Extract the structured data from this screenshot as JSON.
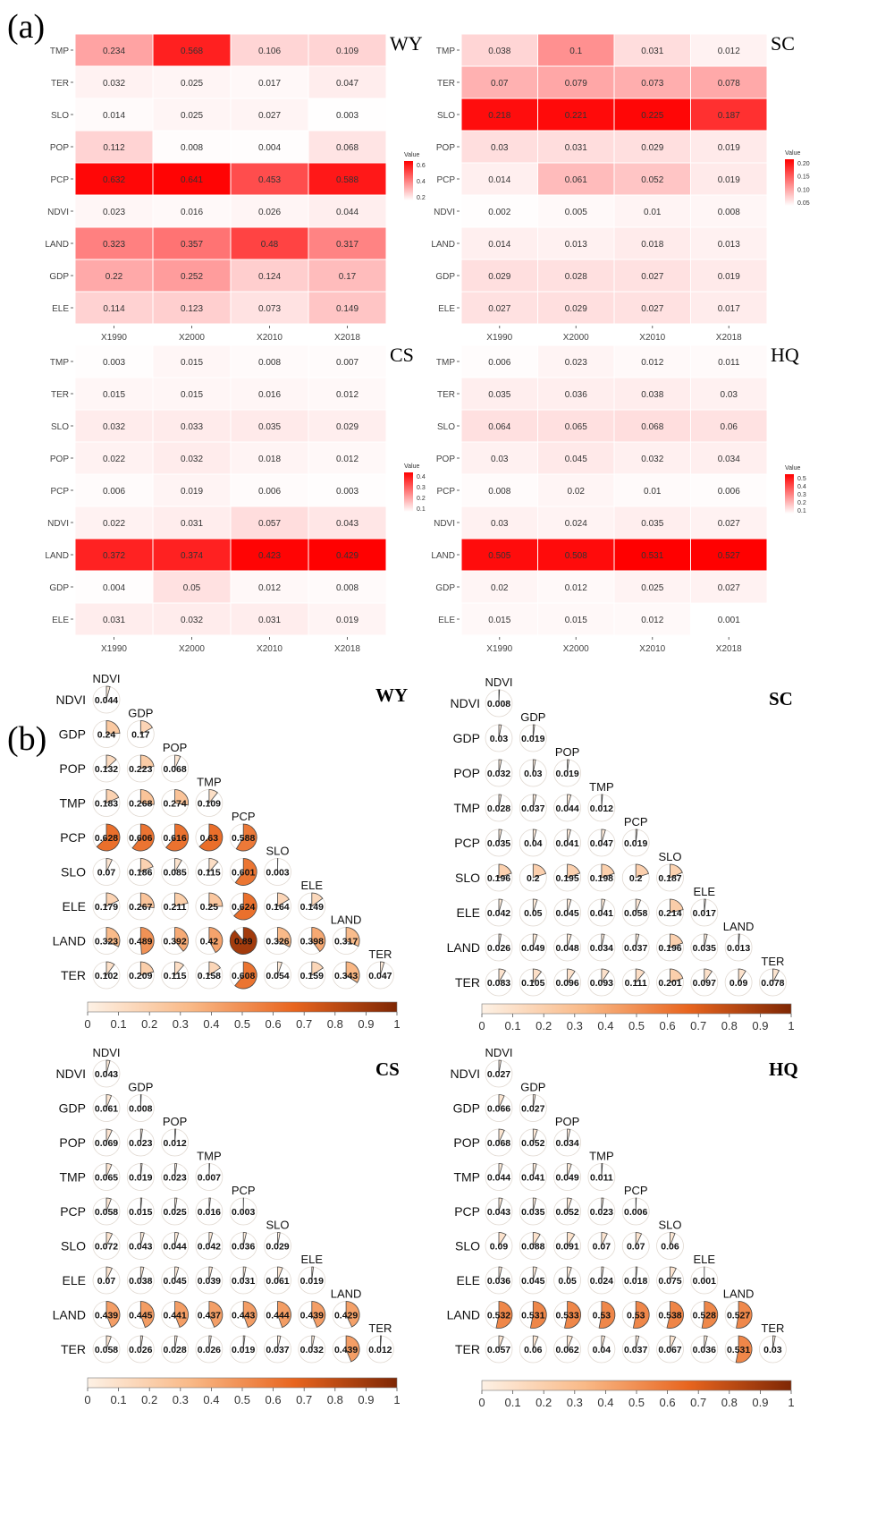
{
  "panels": {
    "a": "(a)",
    "b": "(b)"
  },
  "heatmap_legend": {
    "title": "Value",
    "min_color": "#ffffff",
    "max_color": "#ff0000"
  },
  "pie_legend": {
    "ticks": [
      "0",
      "0.1",
      "0.2",
      "0.3",
      "0.4",
      "0.5",
      "0.6",
      "0.7",
      "0.8",
      "0.9",
      "1"
    ],
    "color_stops": [
      "#fdf1e5",
      "#f9b987",
      "#e8651f",
      "#7f2704"
    ]
  },
  "chart_data": [
    {
      "type": "heatmap",
      "title": "WY",
      "rows": [
        "TMP",
        "TER",
        "SLO",
        "POP",
        "PCP",
        "NDVI",
        "LAND",
        "GDP",
        "ELE"
      ],
      "cols": [
        "X1990",
        "X2000",
        "X2010",
        "X2018"
      ],
      "values": [
        [
          0.234,
          0.568,
          0.106,
          0.109
        ],
        [
          0.032,
          0.025,
          0.017,
          0.047
        ],
        [
          0.014,
          0.025,
          0.027,
          0.003
        ],
        [
          0.112,
          0.008,
          0.004,
          0.068
        ],
        [
          0.632,
          0.641,
          0.453,
          0.588
        ],
        [
          0.023,
          0.016,
          0.026,
          0.044
        ],
        [
          0.323,
          0.357,
          0.48,
          0.317
        ],
        [
          0.22,
          0.252,
          0.124,
          0.17
        ],
        [
          0.114,
          0.123,
          0.073,
          0.149
        ]
      ],
      "legend_ticks": [
        "0.6",
        "0.4",
        "0.2"
      ],
      "vmax": 0.65
    },
    {
      "type": "heatmap",
      "title": "SC",
      "rows": [
        "TMP",
        "TER",
        "SLO",
        "POP",
        "PCP",
        "NDVI",
        "LAND",
        "GDP",
        "ELE"
      ],
      "cols": [
        "X1990",
        "X2000",
        "X2010",
        "X2018"
      ],
      "values": [
        [
          0.038,
          0.1,
          0.031,
          0.012
        ],
        [
          0.07,
          0.079,
          0.073,
          0.078
        ],
        [
          0.218,
          0.221,
          0.225,
          0.187
        ],
        [
          0.03,
          0.031,
          0.029,
          0.019
        ],
        [
          0.014,
          0.061,
          0.052,
          0.019
        ],
        [
          0.002,
          0.005,
          0.01,
          0.008
        ],
        [
          0.014,
          0.013,
          0.018,
          0.013
        ],
        [
          0.029,
          0.028,
          0.027,
          0.019
        ],
        [
          0.027,
          0.029,
          0.027,
          0.017
        ]
      ],
      "legend_ticks": [
        "0.20",
        "0.15",
        "0.10",
        "0.05"
      ],
      "vmax": 0.23
    },
    {
      "type": "heatmap",
      "title": "CS",
      "rows": [
        "TMP",
        "TER",
        "SLO",
        "POP",
        "PCP",
        "NDVI",
        "LAND",
        "GDP",
        "ELE"
      ],
      "cols": [
        "X1990",
        "X2000",
        "X2010",
        "X2018"
      ],
      "values": [
        [
          0.003,
          0.015,
          0.008,
          0.007
        ],
        [
          0.015,
          0.015,
          0.016,
          0.012
        ],
        [
          0.032,
          0.033,
          0.035,
          0.029
        ],
        [
          0.022,
          0.032,
          0.018,
          0.012
        ],
        [
          0.006,
          0.019,
          0.006,
          0.003
        ],
        [
          0.022,
          0.031,
          0.057,
          0.043
        ],
        [
          0.372,
          0.374,
          0.423,
          0.429
        ],
        [
          0.004,
          0.05,
          0.012,
          0.008
        ],
        [
          0.031,
          0.032,
          0.031,
          0.019
        ]
      ],
      "legend_ticks": [
        "0.4",
        "0.3",
        "0.2",
        "0.1"
      ],
      "vmax": 0.43
    },
    {
      "type": "heatmap",
      "title": "HQ",
      "rows": [
        "TMP",
        "TER",
        "SLO",
        "POP",
        "PCP",
        "NDVI",
        "LAND",
        "GDP",
        "ELE"
      ],
      "cols": [
        "X1990",
        "X2000",
        "X2010",
        "X2018"
      ],
      "values": [
        [
          0.006,
          0.023,
          0.012,
          0.011
        ],
        [
          0.035,
          0.036,
          0.038,
          0.03
        ],
        [
          0.064,
          0.065,
          0.068,
          0.06
        ],
        [
          0.03,
          0.045,
          0.032,
          0.034
        ],
        [
          0.008,
          0.02,
          0.01,
          0.006
        ],
        [
          0.03,
          0.024,
          0.035,
          0.027
        ],
        [
          0.505,
          0.508,
          0.531,
          0.527
        ],
        [
          0.02,
          0.012,
          0.025,
          0.027
        ],
        [
          0.015,
          0.015,
          0.012,
          0.001
        ]
      ],
      "legend_ticks": [
        "0.5",
        "0.4",
        "0.3",
        "0.2",
        "0.1"
      ],
      "vmax": 0.53
    },
    {
      "type": "pie",
      "title": "WY",
      "factors": [
        "NDVI",
        "GDP",
        "POP",
        "TMP",
        "PCP",
        "SLO",
        "ELE",
        "LAND",
        "TER"
      ],
      "values": [
        [
          0.044
        ],
        [
          0.24,
          0.17
        ],
        [
          0.132,
          0.223,
          0.068
        ],
        [
          0.183,
          0.268,
          0.274,
          0.109
        ],
        [
          0.628,
          0.606,
          0.616,
          0.63,
          0.588
        ],
        [
          0.07,
          0.186,
          0.085,
          0.115,
          0.601,
          0.003
        ],
        [
          0.179,
          0.267,
          0.211,
          0.25,
          0.624,
          0.164,
          0.149
        ],
        [
          0.323,
          0.489,
          0.392,
          0.42,
          0.89,
          0.326,
          0.398,
          0.317
        ],
        [
          0.102,
          0.209,
          0.115,
          0.158,
          0.608,
          0.054,
          0.159,
          0.343,
          0.047
        ]
      ]
    },
    {
      "type": "pie",
      "title": "SC",
      "factors": [
        "NDVI",
        "GDP",
        "POP",
        "TMP",
        "PCP",
        "SLO",
        "ELE",
        "LAND",
        "TER"
      ],
      "values": [
        [
          0.008
        ],
        [
          0.03,
          0.019
        ],
        [
          0.032,
          0.03,
          0.019
        ],
        [
          0.028,
          0.037,
          0.044,
          0.012
        ],
        [
          0.035,
          0.04,
          0.041,
          0.047,
          0.019
        ],
        [
          0.196,
          0.2,
          0.195,
          0.198,
          0.2,
          0.187
        ],
        [
          0.042,
          0.05,
          0.045,
          0.041,
          0.058,
          0.214,
          0.017
        ],
        [
          0.026,
          0.049,
          0.048,
          0.034,
          0.037,
          0.196,
          0.035,
          0.013
        ],
        [
          0.083,
          0.105,
          0.096,
          0.093,
          0.111,
          0.201,
          0.097,
          0.09,
          0.078
        ]
      ]
    },
    {
      "type": "pie",
      "title": "CS",
      "factors": [
        "NDVI",
        "GDP",
        "POP",
        "TMP",
        "PCP",
        "SLO",
        "ELE",
        "LAND",
        "TER"
      ],
      "values": [
        [
          0.043
        ],
        [
          0.061,
          0.008
        ],
        [
          0.069,
          0.023,
          0.012
        ],
        [
          0.065,
          0.019,
          0.023,
          0.007
        ],
        [
          0.058,
          0.015,
          0.025,
          0.016,
          0.003
        ],
        [
          0.072,
          0.043,
          0.044,
          0.042,
          0.036,
          0.029
        ],
        [
          0.07,
          0.038,
          0.045,
          0.039,
          0.031,
          0.061,
          0.019
        ],
        [
          0.439,
          0.445,
          0.441,
          0.437,
          0.443,
          0.444,
          0.439,
          0.429
        ],
        [
          0.058,
          0.026,
          0.028,
          0.026,
          0.019,
          0.037,
          0.032,
          0.439,
          0.012
        ]
      ]
    },
    {
      "type": "pie",
      "title": "HQ",
      "factors": [
        "NDVI",
        "GDP",
        "POP",
        "TMP",
        "PCP",
        "SLO",
        "ELE",
        "LAND",
        "TER"
      ],
      "values": [
        [
          0.027
        ],
        [
          0.066,
          0.027
        ],
        [
          0.068,
          0.052,
          0.034
        ],
        [
          0.044,
          0.041,
          0.049,
          0.011
        ],
        [
          0.043,
          0.035,
          0.052,
          0.023,
          0.006
        ],
        [
          0.09,
          0.088,
          0.091,
          0.07,
          0.07,
          0.06
        ],
        [
          0.036,
          0.045,
          0.05,
          0.024,
          0.018,
          0.075,
          0.001
        ],
        [
          0.532,
          0.531,
          0.533,
          0.53,
          0.53,
          0.538,
          0.528,
          0.527
        ],
        [
          0.057,
          0.06,
          0.062,
          0.04,
          0.037,
          0.067,
          0.036,
          0.531,
          0.03
        ]
      ]
    }
  ]
}
